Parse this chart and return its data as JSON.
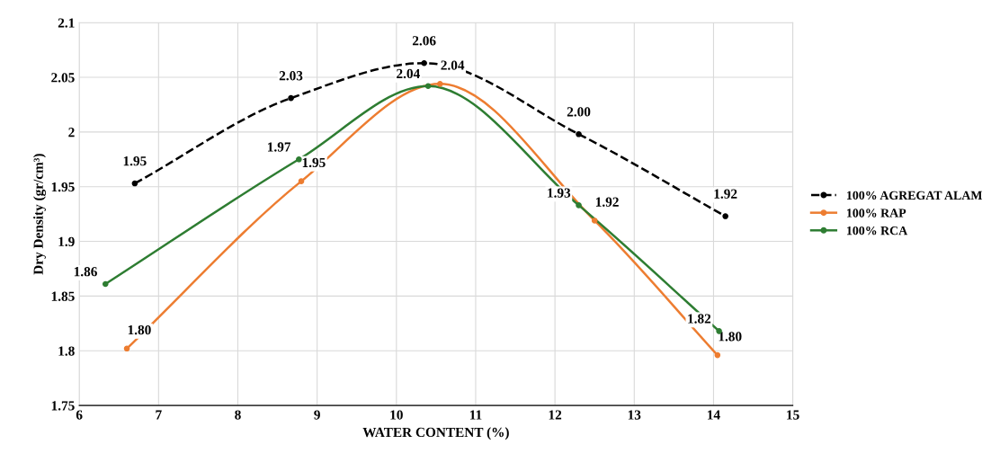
{
  "chart_data": {
    "type": "line",
    "xlabel": "WATER CONTENT (%)",
    "ylabel": "Dry Density (gr/cm³)",
    "xlim": [
      6,
      15
    ],
    "xticks": [
      6,
      7,
      8,
      9,
      10,
      11,
      12,
      13,
      14,
      15
    ],
    "ylim": [
      1.75,
      2.1
    ],
    "yticks": [
      1.75,
      1.8,
      1.85,
      1.9,
      1.95,
      2,
      2.05,
      2.1
    ],
    "grid": true,
    "legend": "right",
    "marker": "circle",
    "series": [
      {
        "name": "100% AGREGAT ALAM",
        "color": "#000000",
        "line_style": "dashed",
        "x": [
          6.7,
          8.67,
          10.35,
          12.3,
          14.15
        ],
        "values": [
          1.953,
          2.031,
          2.063,
          1.998,
          1.923
        ],
        "value_labels": [
          "1.95",
          "2.03",
          "2.06",
          "2.00",
          "1.92"
        ]
      },
      {
        "name": "100% RAP",
        "color": "#ed7d31",
        "line_style": "solid",
        "x": [
          6.6,
          8.8,
          10.55,
          12.5,
          14.05
        ],
        "values": [
          1.802,
          1.955,
          2.044,
          1.919,
          1.796
        ],
        "value_labels": [
          "1.80",
          "1.95",
          "2.04",
          "1.92",
          "1.80"
        ]
      },
      {
        "name": "100% RCA",
        "color": "#2e7d32",
        "line_style": "solid",
        "x": [
          6.33,
          8.77,
          10.4,
          12.3,
          14.07
        ],
        "values": [
          1.861,
          1.975,
          2.042,
          1.933,
          1.818
        ],
        "value_labels": [
          "1.86",
          "1.97",
          "2.04",
          "1.93",
          "1.82"
        ]
      }
    ]
  }
}
